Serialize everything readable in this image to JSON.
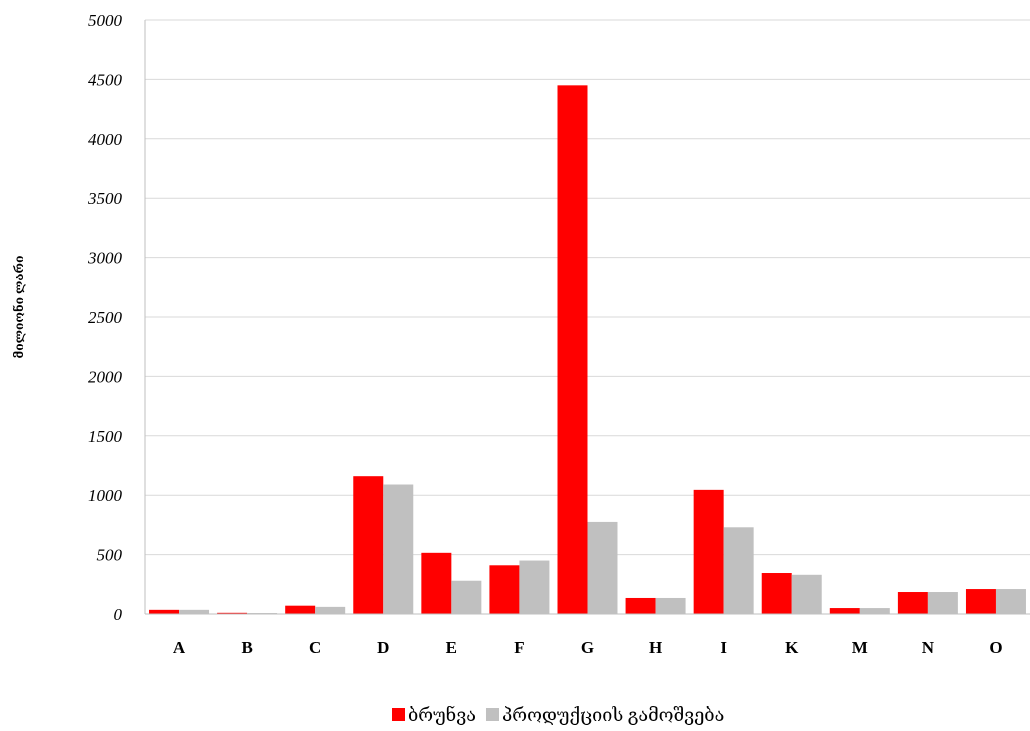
{
  "chart_data": {
    "type": "bar",
    "title": "",
    "xlabel": "",
    "ylabel": "მილიონი ლარი",
    "ylim": [
      0,
      5000
    ],
    "yticks": [
      0,
      500,
      1000,
      1500,
      2000,
      2500,
      3000,
      3500,
      4000,
      4500,
      5000
    ],
    "grid": true,
    "legend_position": "bottom",
    "categories": [
      "A",
      "B",
      "C",
      "D",
      "E",
      "F",
      "G",
      "H",
      "I",
      "K",
      "M",
      "N",
      "O"
    ],
    "series": [
      {
        "name": "ბრუნვა",
        "color": "#ff0000",
        "values": [
          35,
          10,
          70,
          1160,
          515,
          410,
          4450,
          135,
          1045,
          345,
          50,
          185,
          210
        ]
      },
      {
        "name": "პროდუქციის გამოშვება",
        "color": "#c0c0c0",
        "values": [
          35,
          8,
          60,
          1090,
          280,
          450,
          775,
          135,
          730,
          330,
          50,
          185,
          210
        ]
      }
    ]
  }
}
